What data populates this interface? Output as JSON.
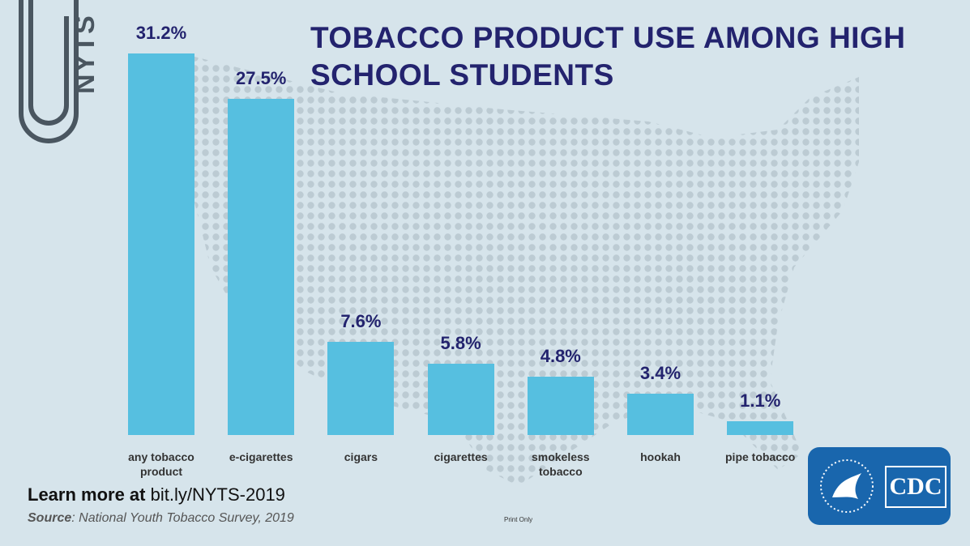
{
  "chart_data": {
    "type": "bar",
    "title": "TOBACCO PRODUCT USE AMONG HIGH SCHOOL STUDENTS",
    "categories": [
      "any tobacco product",
      "e-cigarettes",
      "cigars",
      "cigarettes",
      "smokeless tobacco",
      "hookah",
      "pipe tobacco"
    ],
    "values": [
      31.2,
      27.5,
      7.6,
      5.8,
      4.8,
      3.4,
      1.1
    ],
    "value_labels": [
      "31.2%",
      "27.5%",
      "7.6%",
      "5.8%",
      "4.8%",
      "3.4%",
      "1.1%"
    ],
    "color": "#56bfe0"
  },
  "badge": "NYTS",
  "learn_more": {
    "lead": "Learn more at",
    "link": "bit.ly/NYTS-2019"
  },
  "source": {
    "label": "Source",
    "text": ": National Youth Tobacco Survey, 2019"
  },
  "print_note": "Print Only",
  "logo": "CDC"
}
